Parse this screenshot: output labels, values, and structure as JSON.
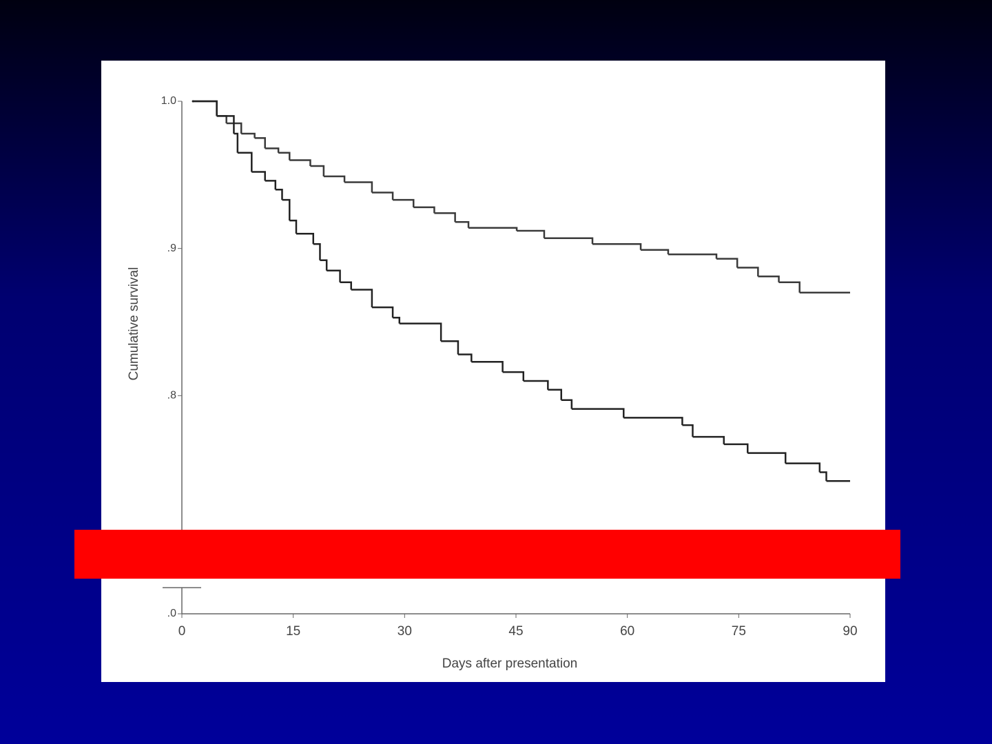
{
  "chart_data": {
    "type": "line",
    "step": true,
    "xlabel": "Days after presentation",
    "ylabel": "Cumulative survival",
    "xlim": [
      0,
      90
    ],
    "xticks": [
      0,
      15,
      30,
      45,
      60,
      75,
      90
    ],
    "ylim": [
      0.7,
      1.0
    ],
    "yticks": [
      {
        "value": 1.0,
        "label": "1.0"
      },
      {
        "value": 0.9,
        "label": ".9"
      },
      {
        "value": 0.8,
        "label": ".8"
      }
    ],
    "y_break_tick": {
      "value": 0,
      "label": ".0"
    },
    "series": [
      {
        "color": "#3a3a3a",
        "x": [
          1.5,
          4.7,
          6,
          8,
          9.8,
          11.2,
          13,
          14.5,
          17.3,
          19.1,
          21.9,
          25.6,
          28.4,
          31.2,
          34,
          36.8,
          38.6,
          45.1,
          48.8,
          55.3,
          61.8,
          65.5,
          72,
          74.8,
          77.6,
          80.4,
          83.2,
          90
        ],
        "values": [
          1.0,
          0.99,
          0.985,
          0.978,
          0.975,
          0.968,
          0.965,
          0.96,
          0.956,
          0.949,
          0.945,
          0.938,
          0.933,
          0.928,
          0.924,
          0.918,
          0.914,
          0.912,
          0.907,
          0.903,
          0.899,
          0.896,
          0.893,
          0.887,
          0.881,
          0.877,
          0.87,
          0.87
        ]
      },
      {
        "color": "#222222",
        "x": [
          1.5,
          4.7,
          7,
          7.5,
          9.4,
          11.2,
          12.6,
          13.5,
          14.5,
          15.4,
          17.7,
          18.6,
          19.5,
          21.3,
          22.8,
          25.6,
          28.4,
          29.3,
          34.9,
          37.2,
          39,
          43.2,
          46,
          49.3,
          51.1,
          52.5,
          59.5,
          67.4,
          68.8,
          73,
          76.2,
          81.3,
          85.9,
          86.8,
          90
        ],
        "values": [
          1.0,
          0.99,
          0.978,
          0.965,
          0.952,
          0.946,
          0.94,
          0.933,
          0.919,
          0.91,
          0.903,
          0.892,
          0.885,
          0.877,
          0.872,
          0.86,
          0.853,
          0.849,
          0.837,
          0.828,
          0.823,
          0.816,
          0.81,
          0.804,
          0.797,
          0.791,
          0.785,
          0.78,
          0.772,
          0.767,
          0.761,
          0.754,
          0.748,
          0.742,
          0.742
        ]
      }
    ]
  }
}
